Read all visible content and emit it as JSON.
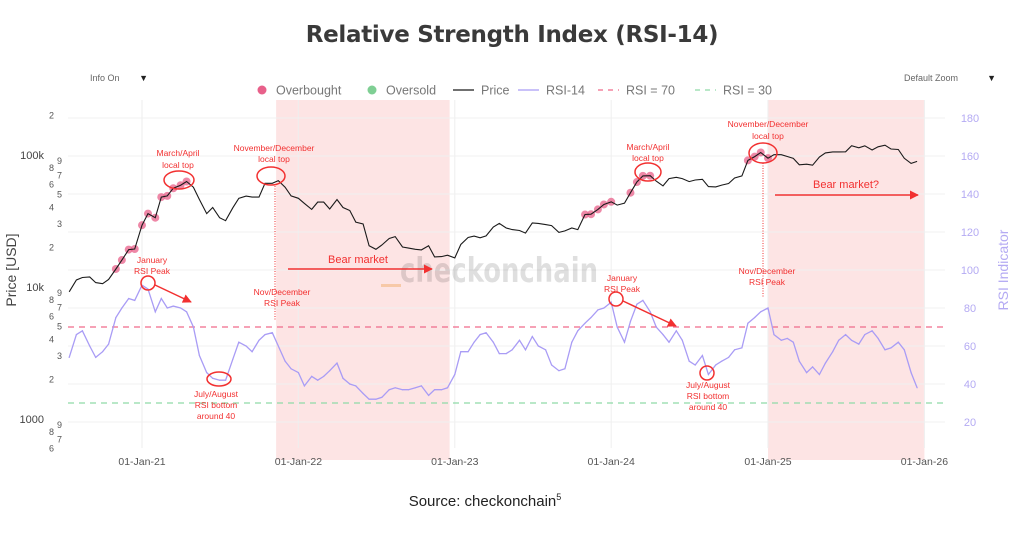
{
  "title": "Relative Strength Index (RSI-14)",
  "controls": {
    "info_label": "Info On",
    "zoom_label": "Default Zoom",
    "dropdown_icon": "triangle-down-icon"
  },
  "source": {
    "text": "Source: checkonchain",
    "footnote": "5"
  },
  "watermark": "checkonchain",
  "colors": {
    "price": "#1a1a1a",
    "rsi": "#a99cf5",
    "overbought": "#e8608a",
    "oversold": "#7fcf94",
    "rsi70": "#f06a8a",
    "rsi30": "#8fd9a8",
    "bear_shade": "#fde4e4",
    "annotation": "#f23030"
  },
  "legend": [
    {
      "label": "Overbought",
      "kind": "dot",
      "color": "#e8608a"
    },
    {
      "label": "Oversold",
      "kind": "dot",
      "color": "#7fcf94"
    },
    {
      "label": "Price",
      "kind": "line",
      "color": "#1a1a1a"
    },
    {
      "label": "RSI-14",
      "kind": "line",
      "color": "#a99cf5"
    },
    {
      "label": "RSI = 70",
      "kind": "dash",
      "color": "#f06a8a"
    },
    {
      "label": "RSI = 30",
      "kind": "dash",
      "color": "#8fd9a8"
    }
  ],
  "annotations": {
    "mar_apr_2021": [
      "March/April",
      "local top"
    ],
    "nov_dec_2021": [
      "November/December",
      "local top"
    ],
    "jan_2021_rsi": [
      "January",
      "RSI Peak"
    ],
    "nov_dec_2021_rsi": [
      "Nov/December",
      "RSI Peak"
    ],
    "jul_aug_2021_rsi": [
      "July/August",
      "RSI bottom",
      "around 40"
    ],
    "bear_2022": "Bear market",
    "mar_apr_2024": [
      "March/April",
      "local top"
    ],
    "nov_dec_2024": [
      "November/December",
      "local top"
    ],
    "jan_2024_rsi": [
      "January",
      "RSI Peak"
    ],
    "nov_dec_2024_rsi": [
      "Nov/December",
      "RSI Peak"
    ],
    "jul_aug_2024_rsi": [
      "July/August",
      "RSI bottom",
      "around 40"
    ],
    "bear_2025": "Bear market?"
  },
  "chart_data": {
    "type": "line",
    "title": "Relative Strength Index (RSI-14)",
    "xlabel": "",
    "ylabel": "Price [USD]",
    "y2label": "RSI Indicator",
    "yscale": "log",
    "ylim": [
      600,
      250000
    ],
    "y2lim": [
      10,
      190
    ],
    "grid": true,
    "legend_position": "top",
    "x_ticks": [
      "01-Jan-21",
      "01-Jan-22",
      "01-Jan-23",
      "01-Jan-24",
      "01-Jan-25",
      "01-Jan-26"
    ],
    "x_tick_dates": [
      "2021-01-01",
      "2022-01-01",
      "2023-01-01",
      "2024-01-01",
      "2025-01-01",
      "2026-01-01"
    ],
    "price_ticks": [
      {
        "value": 200000,
        "label": "2"
      },
      {
        "value": 100000,
        "label": "100k",
        "major": true
      },
      {
        "value": 90000,
        "label": "9"
      },
      {
        "value": 80000,
        "label": "8"
      },
      {
        "value": 70000,
        "label": "7"
      },
      {
        "value": 60000,
        "label": "6"
      },
      {
        "value": 50000,
        "label": "5"
      },
      {
        "value": 40000,
        "label": "4"
      },
      {
        "value": 30000,
        "label": "3"
      },
      {
        "value": 20000,
        "label": "2"
      },
      {
        "value": 10000,
        "label": "10k",
        "major": true
      },
      {
        "value": 9000,
        "label": "9"
      },
      {
        "value": 8000,
        "label": "8"
      },
      {
        "value": 7000,
        "label": "7"
      },
      {
        "value": 6000,
        "label": "6"
      },
      {
        "value": 5000,
        "label": "5"
      },
      {
        "value": 4000,
        "label": "4"
      },
      {
        "value": 3000,
        "label": "3"
      },
      {
        "value": 2000,
        "label": "2"
      },
      {
        "value": 1000,
        "label": "1000",
        "major": true
      },
      {
        "value": 900,
        "label": "9"
      },
      {
        "value": 800,
        "label": "8"
      },
      {
        "value": 700,
        "label": "7"
      },
      {
        "value": 600,
        "label": "6"
      }
    ],
    "rsi_ticks": [
      20,
      40,
      60,
      80,
      100,
      120,
      140,
      160,
      180
    ],
    "rsi_levels": {
      "overbought": 70,
      "oversold": 30
    },
    "bear_periods": [
      [
        "2021-11-10",
        "2022-12-20"
      ],
      [
        "2025-01-01",
        "2026-01-01"
      ]
    ],
    "dates": [
      "2020-07-15",
      "2020-08-01",
      "2020-08-15",
      "2020-09-01",
      "2020-09-15",
      "2020-10-01",
      "2020-10-15",
      "2020-11-01",
      "2020-11-15",
      "2020-12-01",
      "2020-12-15",
      "2021-01-01",
      "2021-01-15",
      "2021-02-01",
      "2021-02-15",
      "2021-03-01",
      "2021-03-15",
      "2021-04-01",
      "2021-04-15",
      "2021-05-01",
      "2021-05-15",
      "2021-06-01",
      "2021-06-15",
      "2021-07-01",
      "2021-07-15",
      "2021-08-01",
      "2021-08-15",
      "2021-09-01",
      "2021-09-15",
      "2021-10-01",
      "2021-10-15",
      "2021-11-01",
      "2021-11-15",
      "2021-12-01",
      "2021-12-15",
      "2022-01-01",
      "2022-01-15",
      "2022-02-01",
      "2022-02-15",
      "2022-03-01",
      "2022-03-15",
      "2022-04-01",
      "2022-04-15",
      "2022-05-01",
      "2022-05-15",
      "2022-06-01",
      "2022-06-15",
      "2022-07-01",
      "2022-07-15",
      "2022-08-01",
      "2022-08-15",
      "2022-09-01",
      "2022-09-15",
      "2022-10-01",
      "2022-10-15",
      "2022-11-01",
      "2022-11-15",
      "2022-12-01",
      "2022-12-15",
      "2023-01-01",
      "2023-01-15",
      "2023-02-01",
      "2023-02-15",
      "2023-03-01",
      "2023-03-15",
      "2023-04-01",
      "2023-04-15",
      "2023-05-01",
      "2023-05-15",
      "2023-06-01",
      "2023-06-15",
      "2023-07-01",
      "2023-07-15",
      "2023-08-01",
      "2023-08-15",
      "2023-09-01",
      "2023-09-15",
      "2023-10-01",
      "2023-10-15",
      "2023-11-01",
      "2023-11-15",
      "2023-12-01",
      "2023-12-15",
      "2024-01-01",
      "2024-01-15",
      "2024-02-01",
      "2024-02-15",
      "2024-03-01",
      "2024-03-15",
      "2024-04-01",
      "2024-04-15",
      "2024-05-01",
      "2024-05-15",
      "2024-06-01",
      "2024-06-15",
      "2024-07-01",
      "2024-07-15",
      "2024-08-01",
      "2024-08-15",
      "2024-09-01",
      "2024-09-15",
      "2024-10-01",
      "2024-10-15",
      "2024-11-01",
      "2024-11-15",
      "2024-12-01",
      "2024-12-15",
      "2025-01-01",
      "2025-01-15",
      "2025-02-01",
      "2025-02-15",
      "2025-03-01",
      "2025-03-15",
      "2025-04-01",
      "2025-04-15",
      "2025-05-01",
      "2025-05-15",
      "2025-06-01",
      "2025-06-15",
      "2025-07-01",
      "2025-07-15",
      "2025-08-01",
      "2025-08-15",
      "2025-09-01",
      "2025-09-15",
      "2025-10-01",
      "2025-10-15",
      "2025-11-01",
      "2025-11-15",
      "2025-12-01",
      "2025-12-15"
    ],
    "series": [
      {
        "name": "Price",
        "axis": "left",
        "values": [
          9200,
          11300,
          11800,
          11900,
          10800,
          10600,
          11400,
          13700,
          16000,
          19200,
          19400,
          29400,
          36000,
          33500,
          48000,
          49000,
          56000,
          59000,
          63000,
          57000,
          46000,
          36000,
          40000,
          33500,
          31800,
          39800,
          47000,
          48800,
          48000,
          48000,
          61000,
          61000,
          64000,
          57000,
          49000,
          47000,
          43000,
          38700,
          44000,
          44000,
          39000,
          46000,
          40000,
          38000,
          31000,
          30000,
          20500,
          19300,
          20800,
          23300,
          24100,
          20100,
          19700,
          19300,
          19100,
          20500,
          16900,
          17000,
          17400,
          16600,
          21000,
          23700,
          24300,
          23600,
          24400,
          28500,
          30300,
          28000,
          27200,
          26800,
          25600,
          30600,
          30300,
          29700,
          29200,
          25900,
          26600,
          28000,
          27200,
          35400,
          35600,
          38700,
          42200,
          44200,
          41700,
          43100,
          51800,
          62400,
          69500,
          69700,
          63400,
          58300,
          66200,
          67800,
          66200,
          62900,
          64700,
          65400,
          57600,
          57300,
          59200,
          60800,
          66900,
          69500,
          91000,
          97200,
          104500,
          94600,
          100500,
          100600,
          97500,
          94300,
          84300,
          85200,
          83700,
          96500,
          103700,
          105600,
          105600,
          105700,
          117700,
          113300,
          117400,
          109200,
          115400,
          118600,
          111100,
          110000,
          94400,
          86300,
          89500
        ]
      },
      {
        "name": "RSI-14",
        "axis": "right",
        "values": [
          54,
          66,
          68,
          60,
          54,
          57,
          61,
          75,
          80,
          85,
          84,
          92,
          90,
          78,
          85,
          80,
          81,
          80,
          78,
          70,
          55,
          46,
          43,
          42,
          42,
          53,
          62,
          60,
          57,
          63,
          66,
          67,
          60,
          52,
          48,
          46,
          39,
          44,
          42,
          44,
          47,
          51,
          43,
          40,
          39,
          35,
          32,
          32,
          33,
          37,
          38,
          37,
          37,
          38,
          39,
          34,
          37,
          37,
          38,
          45,
          57,
          57,
          62,
          66,
          67,
          62,
          56,
          56,
          58,
          63,
          58,
          65,
          60,
          58,
          50,
          47,
          48,
          62,
          68,
          72,
          75,
          79,
          80,
          83,
          70,
          62,
          73,
          82,
          84,
          78,
          70,
          66,
          62,
          68,
          63,
          52,
          50,
          55,
          45,
          50,
          52,
          54,
          58,
          59,
          72,
          75,
          78,
          80,
          66,
          63,
          64,
          62,
          52,
          46,
          49,
          45,
          51,
          57,
          63,
          66,
          63,
          61,
          66,
          68,
          64,
          58,
          59,
          62,
          58,
          46,
          38
        ]
      }
    ]
  }
}
